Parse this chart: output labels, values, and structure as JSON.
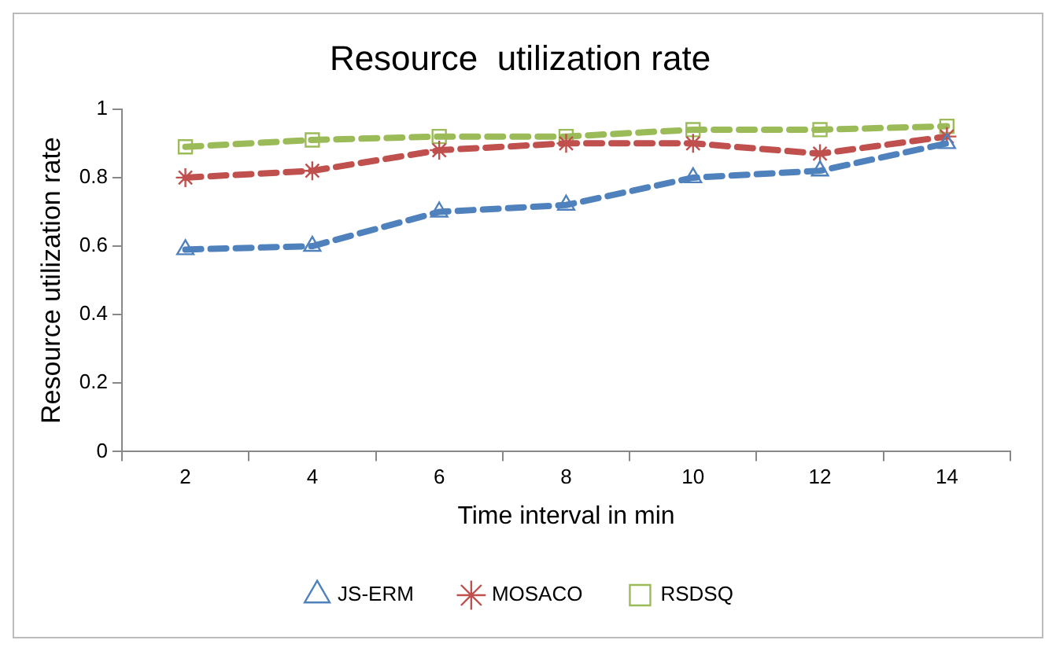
{
  "chart_data": {
    "type": "line",
    "title": "Resource  utilization rate",
    "xlabel": "Time interval in min",
    "ylabel": "Resource utilization rate",
    "categories": [
      "2",
      "4",
      "6",
      "8",
      "10",
      "12",
      "14"
    ],
    "series": [
      {
        "name": "JS-ERM",
        "color": "#4f81bd",
        "marker": "triangle",
        "values": [
          0.59,
          0.6,
          0.7,
          0.72,
          0.8,
          0.82,
          0.9
        ]
      },
      {
        "name": "MOSACO",
        "color": "#c0504d",
        "marker": "cross",
        "values": [
          0.8,
          0.82,
          0.88,
          0.9,
          0.9,
          0.87,
          0.92
        ]
      },
      {
        "name": "RSDSQ",
        "color": "#9bbb59",
        "marker": "square",
        "values": [
          0.89,
          0.91,
          0.92,
          0.92,
          0.94,
          0.94,
          0.95
        ]
      }
    ],
    "ylim": [
      0,
      1
    ],
    "yticks": [
      0,
      0.2,
      0.4,
      0.6,
      0.8,
      1
    ],
    "grid": false,
    "legend": "bottom",
    "line_style": "dashed"
  }
}
